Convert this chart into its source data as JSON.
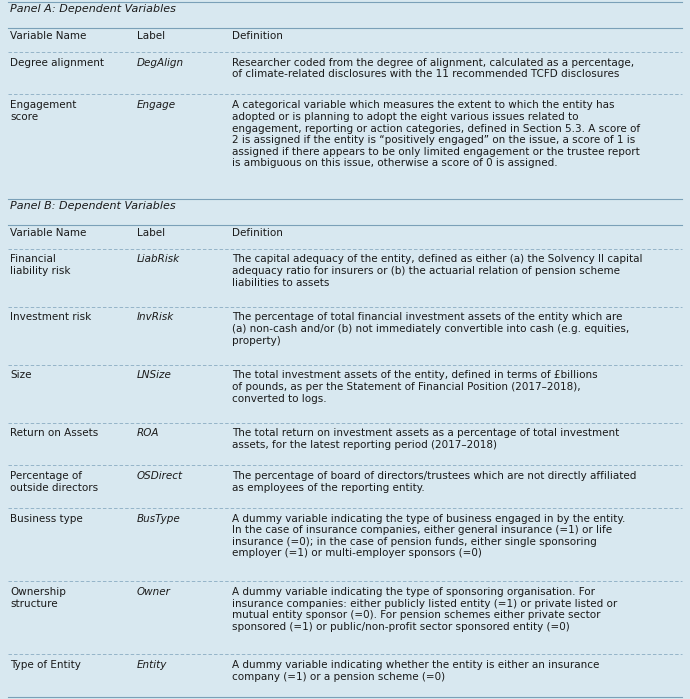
{
  "bg_color": "#d8e8f0",
  "line_color": "#7aa0b8",
  "text_color": "#1a1a1a",
  "link_color": "#1a5fcc",
  "panel_a_header": "Panel A: Dependent Variables",
  "panel_b_header": "Panel B: Dependent Variables",
  "col_headers": [
    "Variable Name",
    "Label",
    "Definition"
  ],
  "rows_a": [
    {
      "name": "Degree alignment",
      "label": "DegAlign",
      "definition": "Researcher coded from the degree of alignment, calculated as a percentage,\nof climate-related disclosures with the 11 recommended TCFD disclosures"
    },
    {
      "name": "Engagement\nscore",
      "label": "Engage",
      "definition": "A categorical variable which measures the extent to which the entity has\nadopted or is planning to adopt the eight various issues related to\nengagement, reporting or action categories, defined in Section 5.3. A score of\n2 is assigned if the entity is “positively engaged” on the issue, a score of 1 is\nassigned if there appears to be only limited engagement or the trustee report\nis ambiguous on this issue, otherwise a score of 0 is assigned."
    }
  ],
  "rows_b": [
    {
      "name": "Financial\nliability risk",
      "label": "LiabRisk",
      "definition": "The capital adequacy of the entity, defined as either (a) the Solvency II capital\nadequacy ratio for insurers or (b) the actuarial relation of pension scheme\nliabilities to assets"
    },
    {
      "name": "Investment risk",
      "label": "InvRisk",
      "definition": "The percentage of total financial investment assets of the entity which are\n(a) non-cash and/or (b) not immediately convertible into cash (e.g. equities,\nproperty)"
    },
    {
      "name": "Size",
      "label": "LNSize",
      "definition": "The total investment assets of the entity, defined in terms of £billions\nof pounds, as per the Statement of Financial Position (2017–2018),\nconverted to logs."
    },
    {
      "name": "Return on Assets",
      "label": "ROA",
      "definition": "The total return on investment assets as a percentage of total investment\nassets, for the latest reporting period (2017–2018)"
    },
    {
      "name": "Percentage of\noutside directors",
      "label": "OSDirect",
      "definition": "The percentage of board of directors/trustees which are not directly affiliated\nas employees of the reporting entity."
    },
    {
      "name": "Business type",
      "label": "BusType",
      "definition": "A dummy variable indicating the type of business engaged in by the entity.\nIn the case of insurance companies, either general insurance (=1) or life\ninsurance (=0); in the case of pension funds, either single sponsoring\nemployer (=1) or multi-employer sponsors (=0)"
    },
    {
      "name": "Ownership\nstructure",
      "label": "Owner",
      "definition": "A dummy variable indicating the type of sponsoring organisation. For\ninsurance companies: either publicly listed entity (=1) or private listed or\nmutual entity sponsor (=0). For pension schemes either private sector\nsponsored (=1) or public/non-profit sector sponsored entity (=0)"
    },
    {
      "name": "Type of Entity",
      "label": "Entity",
      "definition": "A dummy variable indicating whether the entity is either an insurance\ncompany (=1) or a pension scheme (=0)"
    }
  ]
}
